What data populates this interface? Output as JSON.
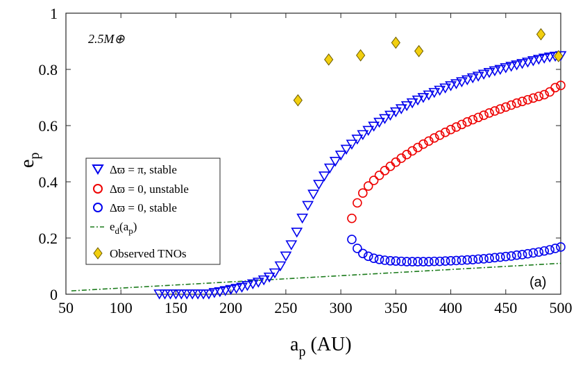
{
  "chart_data": {
    "type": "scatter",
    "xlabel_main": "a",
    "xlabel_sub": "p",
    "xlabel_unit": " (AU)",
    "ylabel_main": "e",
    "ylabel_sub": "p",
    "xlim": [
      50,
      500
    ],
    "ylim": [
      0,
      1
    ],
    "xticks": [
      50,
      100,
      150,
      200,
      250,
      300,
      350,
      400,
      450,
      500
    ],
    "yticks": [
      0,
      0.2,
      0.4,
      0.6,
      0.8,
      1
    ],
    "ytick_labels": [
      "0",
      "0.2",
      "0.4",
      "0.6",
      "0.8",
      "1"
    ],
    "annotation_mass": "2.5M⊕",
    "panel_label": "(a)",
    "legend_position": "middle-left",
    "colors": {
      "stable_pi": "#0000ee",
      "unstable": "#ee0000",
      "stable_0": "#0000ee",
      "ed_line": "#1a7a1a",
      "tno_fill": "#f2cf0f",
      "tno_edge": "#6b5a00"
    },
    "series": [
      {
        "legend": "Δϖ = π, stable",
        "marker": "triangle-down",
        "x": [
          135,
          140,
          145,
          150,
          155,
          160,
          165,
          170,
          175,
          180,
          185,
          190,
          195,
          200,
          205,
          210,
          215,
          220,
          225,
          230,
          235,
          240,
          245,
          250,
          255,
          260,
          265,
          270,
          275,
          280,
          285,
          290,
          295,
          300,
          305,
          310,
          315,
          320,
          325,
          330,
          335,
          340,
          345,
          350,
          355,
          360,
          365,
          370,
          375,
          380,
          385,
          390,
          395,
          400,
          405,
          410,
          415,
          420,
          425,
          430,
          435,
          440,
          445,
          450,
          455,
          460,
          465,
          470,
          475,
          480,
          485,
          490,
          495,
          500
        ],
        "y": [
          0.0,
          0.0,
          0.0,
          0.0,
          0.0,
          0.0,
          0.0,
          0.0,
          0.0,
          0.0,
          0.005,
          0.008,
          0.012,
          0.016,
          0.02,
          0.024,
          0.03,
          0.036,
          0.042,
          0.05,
          0.06,
          0.075,
          0.1,
          0.135,
          0.175,
          0.22,
          0.27,
          0.315,
          0.355,
          0.39,
          0.42,
          0.448,
          0.472,
          0.494,
          0.515,
          0.533,
          0.551,
          0.567,
          0.582,
          0.597,
          0.611,
          0.624,
          0.636,
          0.648,
          0.659,
          0.67,
          0.68,
          0.69,
          0.699,
          0.708,
          0.717,
          0.725,
          0.733,
          0.741,
          0.748,
          0.755,
          0.762,
          0.769,
          0.775,
          0.782,
          0.788,
          0.794,
          0.799,
          0.805,
          0.81,
          0.815,
          0.82,
          0.825,
          0.83,
          0.835,
          0.839,
          0.843,
          0.846,
          0.848
        ]
      },
      {
        "legend": "Δϖ = 0, unstable",
        "marker": "circle",
        "x": [
          310,
          315,
          320,
          325,
          330,
          335,
          340,
          345,
          350,
          355,
          360,
          365,
          370,
          375,
          380,
          385,
          390,
          395,
          400,
          405,
          410,
          415,
          420,
          425,
          430,
          435,
          440,
          445,
          450,
          455,
          460,
          465,
          470,
          475,
          480,
          485,
          490,
          495,
          500
        ],
        "y": [
          0.27,
          0.325,
          0.36,
          0.385,
          0.405,
          0.423,
          0.44,
          0.455,
          0.47,
          0.484,
          0.497,
          0.51,
          0.522,
          0.534,
          0.545,
          0.556,
          0.566,
          0.576,
          0.586,
          0.595,
          0.604,
          0.613,
          0.621,
          0.629,
          0.637,
          0.645,
          0.652,
          0.659,
          0.666,
          0.673,
          0.68,
          0.686,
          0.692,
          0.698,
          0.704,
          0.71,
          0.72,
          0.735,
          0.743
        ]
      },
      {
        "legend": "Δϖ = 0, stable",
        "marker": "circle",
        "x": [
          310,
          315,
          320,
          325,
          330,
          335,
          340,
          345,
          350,
          355,
          360,
          365,
          370,
          375,
          380,
          385,
          390,
          395,
          400,
          405,
          410,
          415,
          420,
          425,
          430,
          435,
          440,
          445,
          450,
          455,
          460,
          465,
          470,
          475,
          480,
          485,
          490,
          495,
          500
        ],
        "y": [
          0.195,
          0.163,
          0.145,
          0.135,
          0.128,
          0.124,
          0.121,
          0.119,
          0.118,
          0.117,
          0.116,
          0.116,
          0.116,
          0.116,
          0.116,
          0.117,
          0.117,
          0.118,
          0.119,
          0.12,
          0.121,
          0.122,
          0.123,
          0.125,
          0.126,
          0.128,
          0.13,
          0.132,
          0.134,
          0.136,
          0.139,
          0.141,
          0.144,
          0.147,
          0.15,
          0.154,
          0.158,
          0.163,
          0.168
        ]
      },
      {
        "legend_main": "e",
        "legend_sub_1": "d",
        "legend_mid": "(a",
        "legend_sub_2": "p",
        "legend_end": ")",
        "marker": "dash-dot-line",
        "x": [
          55,
          500
        ],
        "y": [
          0.012,
          0.11
        ]
      },
      {
        "legend": "Observed TNOs",
        "marker": "diamond",
        "x": [
          261,
          289,
          318,
          350,
          371,
          482,
          498
        ],
        "y": [
          0.69,
          0.835,
          0.85,
          0.895,
          0.865,
          0.925,
          0.847
        ]
      }
    ]
  }
}
